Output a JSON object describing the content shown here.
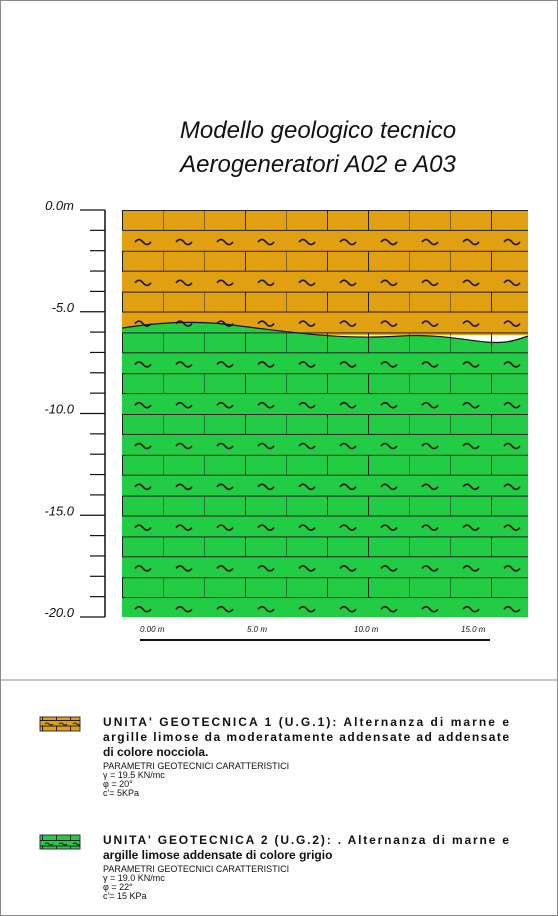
{
  "title": [
    "Modello geologico tecnico",
    "Aerogeneratori A02 e A03"
  ],
  "depth_labels": [
    "0.0m",
    "-5.0",
    "-10.0",
    "-15.0",
    "-20.0"
  ],
  "scale_labels": [
    "0.00 m",
    "5.0 m",
    "10.0 m",
    "15.0 m"
  ],
  "legend": [
    {
      "lines": [
        "UNITA' GEOTECNICA 1 (U.G.1): Alternanza di marne e",
        "argille limose da moderatamente addensate ad addensate",
        "di colore nocciola."
      ],
      "params_title": "PARAMETRI GEOTECNICI CARATTERISTICI",
      "params": [
        "γ = 19.5 KN/mc",
        "φ = 20°",
        "c'= 5KPa"
      ]
    },
    {
      "lines": [
        "UNITA' GEOTECNICA 2 (U.G.2): . Alternanza di marne e",
        "argille limose addensate di colore grigio"
      ],
      "params_title": "PARAMETRI GEOTECNICI CARATTERISTICI",
      "params": [
        "γ = 19.0 KN/mc",
        "φ = 22°",
        "c'= 15 KPa"
      ]
    }
  ]
}
